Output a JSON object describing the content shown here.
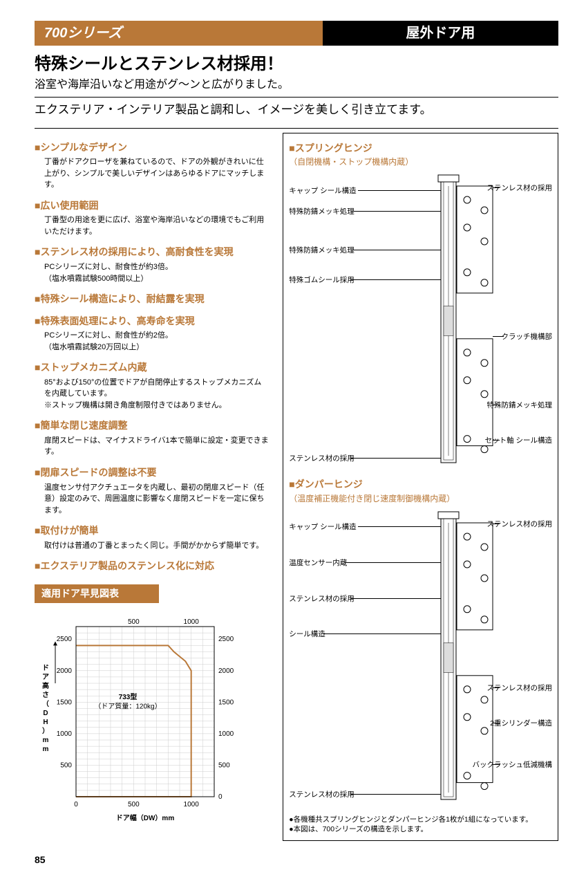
{
  "header": {
    "series": "700シリーズ",
    "usage": "屋外ドア用"
  },
  "headline": "特殊シールとステンレス材採用！",
  "subhead": "浴室や海岸沿いなど用途がグ〜ンと広がりました。",
  "tagline": "エクステリア・インテリア製品と調和し、イメージを美しく引き立てます。",
  "features": [
    {
      "title": "■シンプルなデザイン",
      "body": "丁番がドアクローザを兼ねているので、ドアの外観がきれいに仕上がり、シンプルで美しいデザインはあらゆるドアにマッチします。"
    },
    {
      "title": "■広い使用範囲",
      "body": "丁番型の用途を更に広げ、浴室や海岸沿いなどの環境でもご利用いただけます。"
    },
    {
      "title": "■ステンレス材の採用により、高耐食性を実現",
      "body": "PCシリーズに対し、耐食性が約3倍。\n（塩水噴霧試験500時間以上）"
    },
    {
      "title": "■特殊シール構造により、耐結露を実現",
      "body": ""
    },
    {
      "title": "■特殊表面処理により、高寿命を実現",
      "body": "PCシリーズに対し、耐食性が約2倍。\n（塩水噴霧試験20万回以上）"
    },
    {
      "title": "■ストップメカニズム内蔵",
      "body": "85°および150°の位置でドアが自閉停止するストップメカニズムを内蔵しています。\n※ストップ機構は開き角度制限付きではありません。"
    },
    {
      "title": "■簡単な閉じ速度調整",
      "body": "扉閉スピードは、マイナスドライバ1本で簡単に設定・変更できます。"
    },
    {
      "title": "■閉扉スピードの調整は不要",
      "body": "温度センサ付アクチュエータを内蔵し、最初の閉扉スピード（任意）設定のみで、周囲温度に影響なく扉閉スピードを一定に保ちます。"
    },
    {
      "title": "■取付けが簡単",
      "body": "取付けは普通の丁番とまったく同じ。手間がかからず簡単です。"
    },
    {
      "title": "■エクステリア製品のステンレス化に対応",
      "body": ""
    }
  ],
  "chart": {
    "title": "適用ドア早見図表",
    "x_axis_label": "ドア幅（DW）mm",
    "y_axis_label": "ドア高さ（DH）mm",
    "x_ticks_bottom": [
      0,
      500,
      1000
    ],
    "x_ticks_top": [
      500,
      1000
    ],
    "y_ticks_left": [
      500,
      1000,
      1500,
      2000,
      2500
    ],
    "y_ticks_right": [
      0,
      500,
      1000,
      1500,
      2000,
      2500
    ],
    "xlim": [
      0,
      1200
    ],
    "ylim": [
      0,
      2700
    ],
    "region_label": "733型",
    "region_sublabel": "（ドア質量：120kg）",
    "region_points": [
      [
        0,
        2400
      ],
      [
        800,
        2400
      ],
      [
        850,
        2300
      ],
      [
        950,
        2150
      ],
      [
        1000,
        2000
      ],
      [
        1000,
        0
      ],
      [
        0,
        0
      ]
    ],
    "line_color": "#b97838",
    "grid_color": "#cccccc",
    "bg": "#ffffff"
  },
  "diagrams": {
    "spring": {
      "title": "■スプリングヒンジ",
      "subtitle": "（自閉機構・ストップ機構内蔵）",
      "callouts_left": [
        {
          "text": "キャップ シール構造",
          "y": 6
        },
        {
          "text": "特殊防錆メッキ処理",
          "y": 13
        },
        {
          "text": "特殊防錆メッキ処理",
          "y": 26
        },
        {
          "text": "特殊ゴムシール採用",
          "y": 36
        },
        {
          "text": "ステンレス材の採用",
          "y": 96
        }
      ],
      "callouts_right": [
        {
          "text": "ステンレス材の採用",
          "y": 5
        },
        {
          "text": "クラッチ機構部",
          "y": 55
        },
        {
          "text": "特殊防錆メッキ処理",
          "y": 78
        },
        {
          "text": "セット軸 シール構造",
          "y": 90
        }
      ]
    },
    "damper": {
      "title": "■ダンパーヒンジ",
      "subtitle": "（温度補正機能付き閉じ速度制御機構内蔵）",
      "callouts_left": [
        {
          "text": "キャップ シール構造",
          "y": 6
        },
        {
          "text": "温度センサー内蔵",
          "y": 18
        },
        {
          "text": "ステンレス材の採用",
          "y": 30
        },
        {
          "text": "シール構造",
          "y": 42
        },
        {
          "text": "ステンレス材の採用",
          "y": 96
        }
      ],
      "callouts_right": [
        {
          "text": "ステンレス材の採用",
          "y": 5
        },
        {
          "text": "ステンレス材の採用",
          "y": 60
        },
        {
          "text": "2重シリンダー構造",
          "y": 72
        },
        {
          "text": "バックラッシュ低減機構",
          "y": 86
        }
      ]
    }
  },
  "footnotes": [
    "●各機種共スプリングヒンジとダンパーヒンジ各1枚が1組になっています。",
    "●本図は、700シリーズの構造を示します。"
  ],
  "page_number": "85"
}
